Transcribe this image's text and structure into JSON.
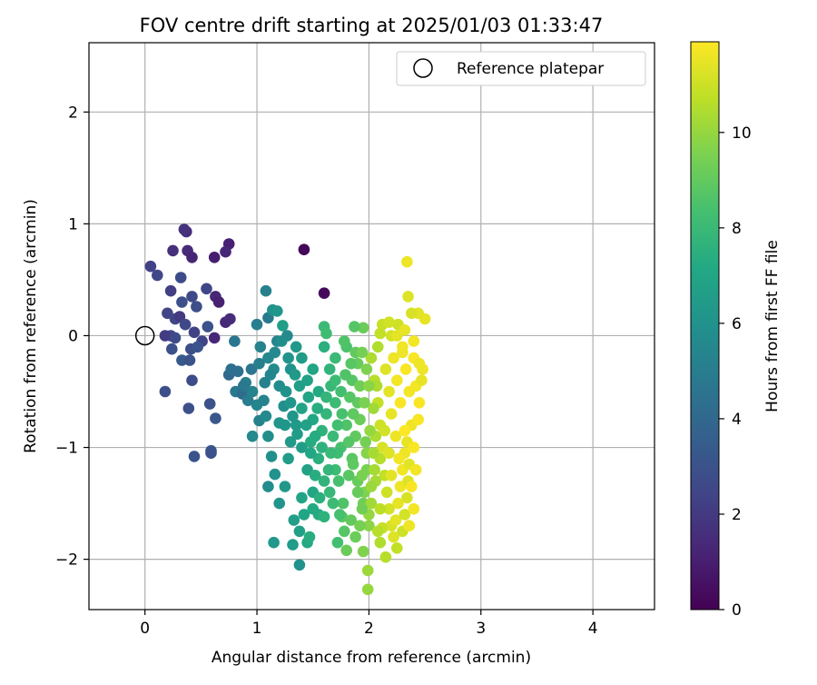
{
  "chart_data": {
    "type": "scatter",
    "title": "FOV centre drift starting at 2025/01/03 01:33:47",
    "xlabel": "Angular distance from reference (arcmin)",
    "ylabel": "Rotation from reference (arcmin)",
    "xlim": [
      -0.5,
      4.55
    ],
    "ylim": [
      -2.45,
      2.62
    ],
    "xticks": [
      0,
      1,
      2,
      3,
      4
    ],
    "yticks": [
      -2,
      -1,
      0,
      1,
      2
    ],
    "x_tick_labels": [
      "0",
      "1",
      "2",
      "3",
      "4"
    ],
    "y_tick_labels": [
      "−2",
      "−1",
      "0",
      "1",
      "2"
    ],
    "grid": true,
    "legend": {
      "placement": "top-right",
      "entries": [
        {
          "label": "Reference platepar",
          "marker": "hollow-circle",
          "color": "#000000"
        }
      ]
    },
    "reference_point": {
      "x": 0,
      "y": 0
    },
    "colorbar": {
      "label": "Hours from first FF file",
      "colormap": "viridis",
      "range": [
        0,
        11.9
      ],
      "ticks": [
        0,
        2,
        4,
        6,
        8,
        10
      ],
      "tick_labels": [
        "0",
        "2",
        "4",
        "6",
        "8",
        "10"
      ]
    },
    "points": [
      [
        1.42,
        0.77,
        0.2
      ],
      [
        1.6,
        0.38,
        0.3
      ],
      [
        0.37,
        0.93,
        1.5
      ],
      [
        0.35,
        0.95,
        1.7
      ],
      [
        0.25,
        0.76,
        1.6
      ],
      [
        0.38,
        0.76,
        1.4
      ],
      [
        0.42,
        0.7,
        1.2
      ],
      [
        0.75,
        0.82,
        1.1
      ],
      [
        0.72,
        0.75,
        1.3
      ],
      [
        0.62,
        0.7,
        1.0
      ],
      [
        0.05,
        0.62,
        2.3
      ],
      [
        0.11,
        0.54,
        2.5
      ],
      [
        0.32,
        0.52,
        2.7
      ],
      [
        0.55,
        0.42,
        2.5
      ],
      [
        0.42,
        0.35,
        2.6
      ],
      [
        0.23,
        0.4,
        2.2
      ],
      [
        0.63,
        0.35,
        1.3
      ],
      [
        0.66,
        0.3,
        1.1
      ],
      [
        0.46,
        0.26,
        2.8
      ],
      [
        0.33,
        0.3,
        2.9
      ],
      [
        0.2,
        0.2,
        2.4
      ],
      [
        0.27,
        0.15,
        2.5
      ],
      [
        0.31,
        0.17,
        2.0
      ],
      [
        0.36,
        0.1,
        2.6
      ],
      [
        0.72,
        0.12,
        1.4
      ],
      [
        0.76,
        0.15,
        1.5
      ],
      [
        0.56,
        0.08,
        3.0
      ],
      [
        0.44,
        0.03,
        2.3
      ],
      [
        0.23,
        0.0,
        2.5
      ],
      [
        0.18,
        0.0,
        2.1
      ],
      [
        0.27,
        -0.02,
        2.7
      ],
      [
        0.51,
        -0.05,
        2.4
      ],
      [
        0.62,
        -0.02,
        1.3
      ],
      [
        0.24,
        -0.12,
        2.9
      ],
      [
        0.41,
        -0.12,
        2.8
      ],
      [
        0.47,
        -0.1,
        3.1
      ],
      [
        0.33,
        -0.22,
        3.3
      ],
      [
        0.4,
        -0.22,
        3.0
      ],
      [
        0.42,
        -0.4,
        2.7
      ],
      [
        0.18,
        -0.5,
        2.8
      ],
      [
        0.39,
        -0.65,
        2.9
      ],
      [
        0.58,
        -0.61,
        3.0
      ],
      [
        0.63,
        -0.74,
        3.2
      ],
      [
        0.44,
        -1.08,
        3.1
      ],
      [
        0.59,
        -1.03,
        3.3
      ],
      [
        0.59,
        -1.05,
        3.0
      ],
      [
        0.8,
        -0.05,
        4.6
      ],
      [
        0.75,
        -0.35,
        4.0
      ],
      [
        0.77,
        -0.3,
        4.4
      ],
      [
        0.83,
        -0.32,
        4.3
      ],
      [
        0.81,
        -0.5,
        4.8
      ],
      [
        0.9,
        -0.42,
        5.1
      ],
      [
        0.87,
        -0.52,
        4.2
      ],
      [
        0.96,
        -0.5,
        5.3
      ],
      [
        0.95,
        -0.3,
        4.6
      ],
      [
        1.0,
        0.1,
        5.0
      ],
      [
        1.1,
        0.16,
        4.8
      ],
      [
        1.08,
        0.4,
        5.2
      ],
      [
        1.03,
        -0.1,
        5.3
      ],
      [
        1.18,
        -0.05,
        5.4
      ],
      [
        1.27,
        0.0,
        5.6
      ],
      [
        1.14,
        0.23,
        6.0
      ],
      [
        1.18,
        0.22,
        6.2
      ],
      [
        1.23,
        0.09,
        6.6
      ],
      [
        1.1,
        -0.2,
        5.5
      ],
      [
        1.15,
        -0.3,
        5.6
      ],
      [
        1.2,
        -0.45,
        5.7
      ],
      [
        1.07,
        -0.42,
        5.2
      ],
      [
        1.0,
        -0.62,
        5.4
      ],
      [
        1.02,
        -0.76,
        5.2
      ],
      [
        0.96,
        -0.9,
        5.6
      ],
      [
        1.1,
        -0.9,
        5.8
      ],
      [
        1.24,
        -0.63,
        5.9
      ],
      [
        1.2,
        -0.78,
        6.2
      ],
      [
        1.13,
        -1.08,
        5.9
      ],
      [
        1.1,
        -1.35,
        5.7
      ],
      [
        1.16,
        -1.24,
        6.0
      ],
      [
        1.15,
        -1.85,
        6.3
      ],
      [
        1.32,
        -1.87,
        6.5
      ],
      [
        1.38,
        -1.75,
        6.7
      ],
      [
        1.33,
        -1.65,
        6.6
      ],
      [
        1.38,
        -2.05,
        6.0
      ],
      [
        1.45,
        -1.85,
        7.2
      ],
      [
        1.47,
        -1.8,
        7.4
      ],
      [
        1.3,
        -0.3,
        6.0
      ],
      [
        1.35,
        -0.1,
        6.3
      ],
      [
        1.4,
        -0.2,
        6.5
      ],
      [
        1.45,
        -0.4,
        6.8
      ],
      [
        1.5,
        -0.3,
        7.0
      ],
      [
        1.55,
        -0.5,
        7.2
      ],
      [
        1.6,
        -0.1,
        7.5
      ],
      [
        1.65,
        -0.3,
        7.7
      ],
      [
        1.7,
        -0.2,
        8.0
      ],
      [
        1.75,
        -0.5,
        8.3
      ],
      [
        1.8,
        -0.1,
        8.5
      ],
      [
        1.85,
        -0.4,
        8.7
      ],
      [
        1.9,
        -0.6,
        9.0
      ],
      [
        1.95,
        0.07,
        9.2
      ],
      [
        1.6,
        0.08,
        8.0
      ],
      [
        1.62,
        0.02,
        8.2
      ],
      [
        1.78,
        -0.05,
        8.6
      ],
      [
        1.87,
        0.08,
        8.7
      ],
      [
        1.3,
        -0.6,
        6.2
      ],
      [
        1.35,
        -0.8,
        6.4
      ],
      [
        1.4,
        -1.0,
        6.6
      ],
      [
        1.45,
        -1.2,
        6.8
      ],
      [
        1.5,
        -1.4,
        7.0
      ],
      [
        1.55,
        -1.6,
        7.3
      ],
      [
        1.6,
        -1.62,
        7.6
      ],
      [
        1.65,
        -1.4,
        7.9
      ],
      [
        1.7,
        -1.2,
        8.1
      ],
      [
        1.75,
        -1.0,
        8.4
      ],
      [
        1.8,
        -0.8,
        8.6
      ],
      [
        1.85,
        -1.1,
        8.8
      ],
      [
        1.9,
        -1.3,
        9.1
      ],
      [
        1.95,
        -1.5,
        9.3
      ],
      [
        1.76,
        -1.62,
        8.8
      ],
      [
        1.8,
        -1.92,
        9.2
      ],
      [
        1.95,
        -1.93,
        9.6
      ],
      [
        1.99,
        -2.1,
        10.1
      ],
      [
        1.99,
        -2.27,
        10.0
      ],
      [
        1.72,
        -1.85,
        8.3
      ],
      [
        1.2,
        -1.5,
        6.1
      ],
      [
        1.25,
        -1.35,
        6.3
      ],
      [
        1.28,
        -1.1,
        6.5
      ],
      [
        1.3,
        -0.95,
        6.4
      ],
      [
        1.25,
        -0.8,
        6.2
      ],
      [
        1.4,
        -0.65,
        6.9
      ],
      [
        1.5,
        -0.75,
        7.1
      ],
      [
        1.48,
        -0.95,
        7.3
      ],
      [
        1.55,
        -1.1,
        7.5
      ],
      [
        1.58,
        -0.85,
        7.6
      ],
      [
        1.62,
        -0.7,
        7.8
      ],
      [
        1.68,
        -0.9,
        8.0
      ],
      [
        1.72,
        -1.05,
        8.2
      ],
      [
        1.73,
        -1.3,
        8.4
      ],
      [
        1.77,
        -1.5,
        8.6
      ],
      [
        1.82,
        -1.25,
        8.8
      ],
      [
        1.88,
        -0.9,
        9.0
      ],
      [
        1.92,
        -0.75,
        9.2
      ],
      [
        1.97,
        -0.95,
        9.4
      ],
      [
        1.98,
        -1.2,
        9.5
      ],
      [
        1.96,
        -1.4,
        9.6
      ],
      [
        2.0,
        -1.7,
        9.8
      ],
      [
        1.66,
        -0.45,
        7.9
      ],
      [
        1.7,
        -0.6,
        8.1
      ],
      [
        1.83,
        -0.55,
        8.7
      ],
      [
        1.9,
        -0.25,
        9.1
      ],
      [
        1.92,
        -0.45,
        9.3
      ],
      [
        1.98,
        -0.3,
        9.6
      ],
      [
        2.02,
        -0.2,
        10.4
      ],
      [
        2.05,
        -0.4,
        10.6
      ],
      [
        2.08,
        -0.6,
        10.8
      ],
      [
        2.1,
        -0.8,
        11.0
      ],
      [
        2.12,
        -1.0,
        11.2
      ],
      [
        2.15,
        -0.3,
        11.3
      ],
      [
        2.18,
        -0.5,
        11.4
      ],
      [
        2.2,
        -0.7,
        11.5
      ],
      [
        2.22,
        -0.2,
        11.6
      ],
      [
        2.25,
        -0.4,
        11.7
      ],
      [
        2.28,
        -0.6,
        11.8
      ],
      [
        2.3,
        -0.1,
        11.7
      ],
      [
        2.33,
        -0.3,
        11.8
      ],
      [
        2.36,
        -0.5,
        11.7
      ],
      [
        2.38,
        -0.8,
        11.6
      ],
      [
        2.4,
        -0.2,
        11.8
      ],
      [
        2.42,
        -0.45,
        11.7
      ],
      [
        2.45,
        -0.6,
        11.8
      ],
      [
        2.48,
        -0.3,
        11.6
      ],
      [
        2.5,
        0.15,
        11.5
      ],
      [
        2.44,
        0.2,
        11.4
      ],
      [
        2.35,
        0.35,
        11.3
      ],
      [
        2.34,
        0.66,
        11.6
      ],
      [
        2.38,
        0.2,
        11.2
      ],
      [
        2.26,
        0.1,
        11.0
      ],
      [
        2.2,
        0.0,
        11.1
      ],
      [
        2.1,
        0.02,
        10.8
      ],
      [
        2.08,
        -0.1,
        10.5
      ],
      [
        2.12,
        0.1,
        10.9
      ],
      [
        2.18,
        0.12,
        11.1
      ],
      [
        2.25,
        0.0,
        11.4
      ],
      [
        2.32,
        0.05,
        11.5
      ],
      [
        2.3,
        -0.15,
        11.6
      ],
      [
        2.4,
        -0.05,
        11.7
      ],
      [
        2.45,
        -0.25,
        11.6
      ],
      [
        2.47,
        -0.4,
        11.5
      ],
      [
        2.04,
        -0.65,
        10.2
      ],
      [
        2.06,
        -0.9,
        10.4
      ],
      [
        2.1,
        -1.1,
        10.6
      ],
      [
        2.14,
        -1.25,
        10.8
      ],
      [
        2.16,
        -1.4,
        11.0
      ],
      [
        2.18,
        -1.55,
        11.1
      ],
      [
        2.2,
        -1.7,
        11.2
      ],
      [
        2.22,
        -1.8,
        11.3
      ],
      [
        2.24,
        -1.65,
        11.4
      ],
      [
        2.26,
        -1.5,
        11.5
      ],
      [
        2.28,
        -1.35,
        11.6
      ],
      [
        2.3,
        -1.2,
        11.7
      ],
      [
        2.32,
        -1.05,
        11.6
      ],
      [
        2.34,
        -0.95,
        11.5
      ],
      [
        2.36,
        -1.15,
        11.4
      ],
      [
        2.35,
        -1.3,
        11.3
      ],
      [
        2.34,
        -1.45,
        11.2
      ],
      [
        2.32,
        -1.6,
        11.1
      ],
      [
        2.3,
        -1.75,
        11.0
      ],
      [
        2.25,
        -1.9,
        10.8
      ],
      [
        2.15,
        -1.98,
        10.6
      ],
      [
        2.1,
        -1.85,
        10.5
      ],
      [
        2.0,
        -1.6,
        10.0
      ],
      [
        2.02,
        -1.5,
        10.2
      ],
      [
        2.06,
        -1.3,
        10.3
      ],
      [
        2.1,
        -1.55,
        10.7
      ],
      [
        2.12,
        -1.72,
        10.9
      ],
      [
        2.08,
        -1.75,
        10.6
      ],
      [
        2.05,
        -1.2,
        10.3
      ],
      [
        2.07,
        -0.45,
        10.4
      ],
      [
        2.14,
        -0.85,
        11.1
      ],
      [
        2.18,
        -1.05,
        11.3
      ],
      [
        2.2,
        -1.25,
        11.4
      ],
      [
        2.24,
        -0.9,
        11.6
      ],
      [
        2.27,
        -1.1,
        11.7
      ],
      [
        2.38,
        -1.35,
        11.8
      ],
      [
        2.4,
        -1.55,
        11.7
      ],
      [
        2.36,
        -1.7,
        11.6
      ],
      [
        2.4,
        -1.0,
        11.8
      ],
      [
        2.42,
        -1.2,
        11.7
      ],
      [
        2.44,
        -0.75,
        11.8
      ],
      [
        2.32,
        -0.85,
        11.9
      ],
      [
        1.4,
        -1.45,
        6.9
      ],
      [
        1.42,
        -1.6,
        7.0
      ],
      [
        1.5,
        -1.55,
        7.2
      ],
      [
        1.52,
        -1.25,
        7.4
      ],
      [
        1.56,
        -1.45,
        7.5
      ],
      [
        1.64,
        -1.2,
        7.8
      ],
      [
        1.68,
        -1.5,
        8.1
      ],
      [
        1.74,
        -1.6,
        8.4
      ],
      [
        1.78,
        -1.75,
        8.7
      ],
      [
        1.84,
        -1.65,
        9.0
      ],
      [
        1.88,
        -1.8,
        9.2
      ],
      [
        1.92,
        -1.7,
        9.4
      ],
      [
        1.94,
        -1.25,
        9.5
      ],
      [
        1.98,
        -1.05,
        9.7
      ],
      [
        2.01,
        -0.85,
        10.0
      ],
      [
        2.04,
        -1.05,
        10.3
      ],
      [
        1.86,
        -0.7,
        8.9
      ],
      [
        1.79,
        -0.35,
        8.6
      ],
      [
        1.72,
        -0.8,
        8.3
      ],
      [
        1.66,
        -1.05,
        8.0
      ],
      [
        1.6,
        -1.3,
        7.7
      ],
      [
        1.54,
        -0.65,
        7.4
      ],
      [
        1.46,
        -0.55,
        7.0
      ],
      [
        1.38,
        -0.45,
        6.6
      ],
      [
        1.34,
        -0.35,
        6.4
      ],
      [
        1.28,
        -0.2,
        6.1
      ],
      [
        1.22,
        -0.05,
        5.8
      ],
      [
        1.16,
        -0.15,
        5.6
      ],
      [
        1.12,
        -0.35,
        5.4
      ],
      [
        1.06,
        -0.58,
        5.3
      ],
      [
        0.88,
        -0.45,
        4.7
      ],
      [
        0.92,
        -0.58,
        5.0
      ],
      [
        1.02,
        -0.25,
        5.1
      ],
      [
        1.08,
        -0.72,
        5.6
      ],
      [
        1.26,
        -0.5,
        6.0
      ],
      [
        1.32,
        -0.72,
        6.2
      ],
      [
        1.36,
        -0.88,
        6.5
      ],
      [
        1.44,
        -0.8,
        6.8
      ],
      [
        1.48,
        -1.05,
        7.1
      ],
      [
        1.52,
        -0.9,
        7.3
      ],
      [
        1.58,
        -1.0,
        7.6
      ],
      [
        1.62,
        -0.55,
        7.8
      ],
      [
        1.7,
        -0.4,
        8.1
      ],
      [
        1.76,
        -0.7,
        8.4
      ],
      [
        1.82,
        -0.95,
        8.7
      ],
      [
        1.86,
        -1.15,
        8.9
      ],
      [
        1.9,
        -1.4,
        9.1
      ],
      [
        1.94,
        -1.55,
        9.3
      ],
      [
        1.96,
        -0.6,
        9.5
      ],
      [
        2.0,
        -0.45,
        9.8
      ],
      [
        2.02,
        -1.35,
        10.1
      ],
      [
        1.88,
        -0.15,
        9.0
      ],
      [
        1.84,
        -0.25,
        8.8
      ],
      [
        1.94,
        -0.15,
        9.4
      ]
    ]
  }
}
